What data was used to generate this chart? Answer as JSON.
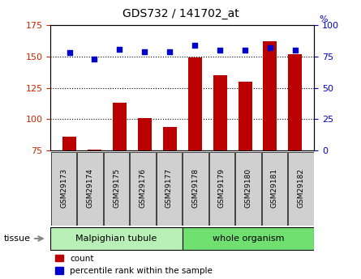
{
  "title": "GDS732 / 141702_at",
  "samples": [
    "GSM29173",
    "GSM29174",
    "GSM29175",
    "GSM29176",
    "GSM29177",
    "GSM29178",
    "GSM29179",
    "GSM29180",
    "GSM29181",
    "GSM29182"
  ],
  "counts": [
    86,
    76,
    113,
    101,
    94,
    149,
    135,
    130,
    162,
    152
  ],
  "percentiles": [
    78,
    73,
    81,
    79,
    79,
    84,
    80,
    80,
    82,
    80
  ],
  "tissue_groups": [
    {
      "label": "Malpighian tubule",
      "n": 5,
      "color": "#b8f0b8"
    },
    {
      "label": "whole organism",
      "n": 5,
      "color": "#70e070"
    }
  ],
  "ylim_left": [
    75,
    175
  ],
  "ylim_right": [
    0,
    100
  ],
  "yticks_left": [
    75,
    100,
    125,
    150,
    175
  ],
  "yticks_right": [
    0,
    25,
    50,
    75,
    100
  ],
  "bar_color": "#bb0000",
  "dot_color": "#0000cc",
  "bar_width": 0.55,
  "bg_color": "#ffffff",
  "tick_color_left": "#cc2200",
  "tick_color_right": "#0000cc",
  "xticklabel_bg": "#d0d0d0",
  "legend_items": [
    {
      "label": "count",
      "color": "#bb0000"
    },
    {
      "label": "percentile rank within the sample",
      "color": "#0000cc"
    }
  ],
  "pct_symbol": "%"
}
